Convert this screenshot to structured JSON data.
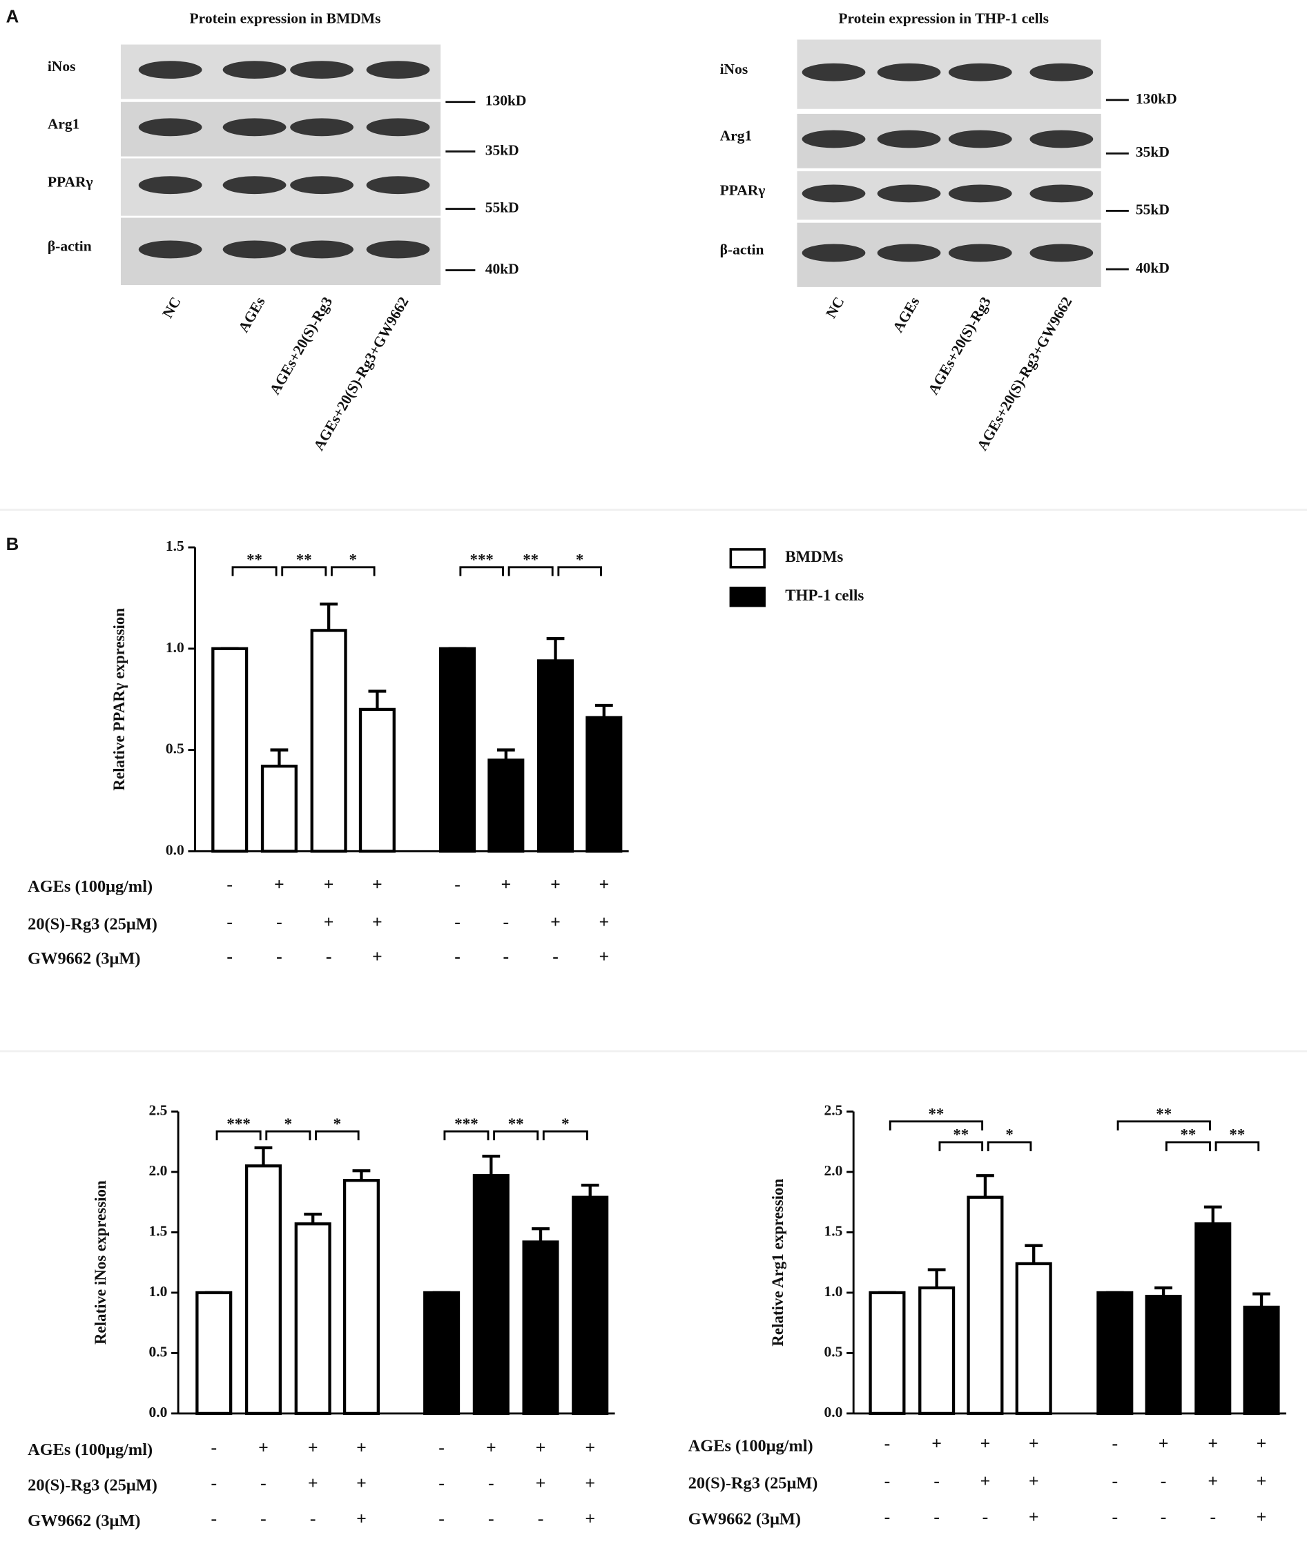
{
  "panel_labels": [
    "A",
    "B"
  ],
  "blots": [
    {
      "title": "Protein expression in BMDMs",
      "rows": [
        "iNos",
        "Arg1",
        "PPARγ",
        "β-actin"
      ],
      "markers": [
        "130kD",
        "35kD",
        "55kD",
        "40kD"
      ],
      "lanes": [
        "NC",
        "AGEs",
        "AGEs+20(S)-Rg3",
        "AGEs+20(S)-Rg3+GW9662"
      ]
    },
    {
      "title": "Protein expression in THP-1 cells",
      "rows": [
        "iNos",
        "Arg1",
        "PPARγ",
        "β-actin"
      ],
      "markers": [
        "130kD",
        "35kD",
        "55kD",
        "40kD"
      ],
      "lanes": [
        "NC",
        "AGEs",
        "AGEs+20(S)-Rg3",
        "AGEs+20(S)-Rg3+GW9662"
      ]
    }
  ],
  "chart_data": [
    {
      "type": "bar",
      "y_label": "Relative PPARγ expression",
      "ylim": [
        0,
        1.5
      ],
      "yticks": [
        {
          "value": 0,
          "label": "0.0"
        },
        0.5,
        {
          "value": 1,
          "label": "1.0"
        },
        1.5
      ],
      "legend": true,
      "series": [
        {
          "name": "BMDMs",
          "color": "#ffffff",
          "values": [
            1.0,
            0.42,
            1.09,
            0.7
          ],
          "errors": [
            0,
            0.08,
            0.13,
            0.09
          ]
        },
        {
          "name": "THP-1 cells",
          "color": "#000000",
          "values": [
            1.0,
            0.45,
            0.94,
            0.66
          ],
          "errors": [
            0,
            0.05,
            0.11,
            0.06
          ]
        }
      ],
      "brackets": [
        {
          "from": 0,
          "to": 1,
          "label": "**"
        },
        {
          "from": 1,
          "to": 2,
          "label": "**"
        },
        {
          "from": 2,
          "to": 3,
          "label": "*"
        },
        {
          "from": 4,
          "to": 5,
          "label": "***"
        },
        {
          "from": 5,
          "to": 6,
          "label": "**"
        },
        {
          "from": 6,
          "to": 7,
          "label": "*"
        }
      ],
      "conditions": [
        {
          "label": "AGEs (100μg/ml)",
          "signs": [
            "-",
            "+",
            "+",
            "+",
            "-",
            "+",
            "+",
            "+"
          ]
        },
        {
          "label": "20(S)-Rg3 (25μM)",
          "signs": [
            "-",
            "-",
            "+",
            "+",
            "-",
            "-",
            "+",
            "+"
          ]
        },
        {
          "label": "GW9662 (3μM)",
          "signs": [
            "-",
            "-",
            "-",
            "+",
            "-",
            "-",
            "-",
            "+"
          ]
        }
      ]
    },
    {
      "type": "bar",
      "y_label": "Relative iNos expression",
      "ylim": [
        0,
        2.5
      ],
      "yticks": [
        {
          "value": 0,
          "label": "0.0"
        },
        0.5,
        {
          "value": 1,
          "label": "1.0"
        },
        1.5,
        {
          "value": 2,
          "label": "2.0"
        },
        2.5
      ],
      "legend": false,
      "series": [
        {
          "color": "#ffffff",
          "values": [
            1.0,
            2.05,
            1.57,
            1.93
          ],
          "errors": [
            0,
            0.15,
            0.08,
            0.08
          ]
        },
        {
          "color": "#000000",
          "values": [
            1.0,
            1.97,
            1.42,
            1.79
          ],
          "errors": [
            0,
            0.16,
            0.11,
            0.1
          ]
        }
      ],
      "brackets": [
        {
          "from": 0,
          "to": 1,
          "label": "***"
        },
        {
          "from": 1,
          "to": 2,
          "label": "*"
        },
        {
          "from": 2,
          "to": 3,
          "label": "*"
        },
        {
          "from": 4,
          "to": 5,
          "label": "***"
        },
        {
          "from": 5,
          "to": 6,
          "label": "**"
        },
        {
          "from": 6,
          "to": 7,
          "label": "*"
        }
      ],
      "conditions": [
        {
          "label": "AGEs (100μg/ml)",
          "signs": [
            "-",
            "+",
            "+",
            "+",
            "-",
            "+",
            "+",
            "+"
          ]
        },
        {
          "label": "20(S)-Rg3 (25μM)",
          "signs": [
            "-",
            "-",
            "+",
            "+",
            "-",
            "-",
            "+",
            "+"
          ]
        },
        {
          "label": "GW9662 (3μM)",
          "signs": [
            "-",
            "-",
            "-",
            "+",
            "-",
            "-",
            "-",
            "+"
          ]
        }
      ]
    },
    {
      "type": "bar",
      "y_label": "Relative Arg1 expression",
      "ylim": [
        0,
        2.5
      ],
      "yticks": [
        {
          "value": 0,
          "label": "0.0"
        },
        0.5,
        {
          "value": 1,
          "label": "1.0"
        },
        1.5,
        {
          "value": 2,
          "label": "2.0"
        },
        2.5
      ],
      "legend": false,
      "series": [
        {
          "color": "#ffffff",
          "values": [
            1.0,
            1.04,
            1.79,
            1.24
          ],
          "errors": [
            0,
            0.15,
            0.18,
            0.15
          ]
        },
        {
          "color": "#000000",
          "values": [
            1.0,
            0.97,
            1.57,
            0.88
          ],
          "errors": [
            0,
            0.07,
            0.14,
            0.11
          ]
        }
      ],
      "brackets": [
        {
          "from": 0,
          "to": 2,
          "label": "**"
        },
        {
          "from": 1,
          "to": 2,
          "label": "**"
        },
        {
          "from": 2,
          "to": 3,
          "label": "*"
        },
        {
          "from": 4,
          "to": 6,
          "label": "**"
        },
        {
          "from": 5,
          "to": 6,
          "label": "**"
        },
        {
          "from": 6,
          "to": 7,
          "label": "**"
        }
      ],
      "conditions": [
        {
          "label": "AGEs (100μg/ml)",
          "signs": [
            "-",
            "+",
            "+",
            "+",
            "-",
            "+",
            "+",
            "+"
          ]
        },
        {
          "label": "20(S)-Rg3 (25μM)",
          "signs": [
            "-",
            "-",
            "+",
            "+",
            "-",
            "-",
            "+",
            "+"
          ]
        },
        {
          "label": "GW9662 (3μM)",
          "signs": [
            "-",
            "-",
            "-",
            "+",
            "-",
            "-",
            "-",
            "+"
          ]
        }
      ]
    }
  ]
}
